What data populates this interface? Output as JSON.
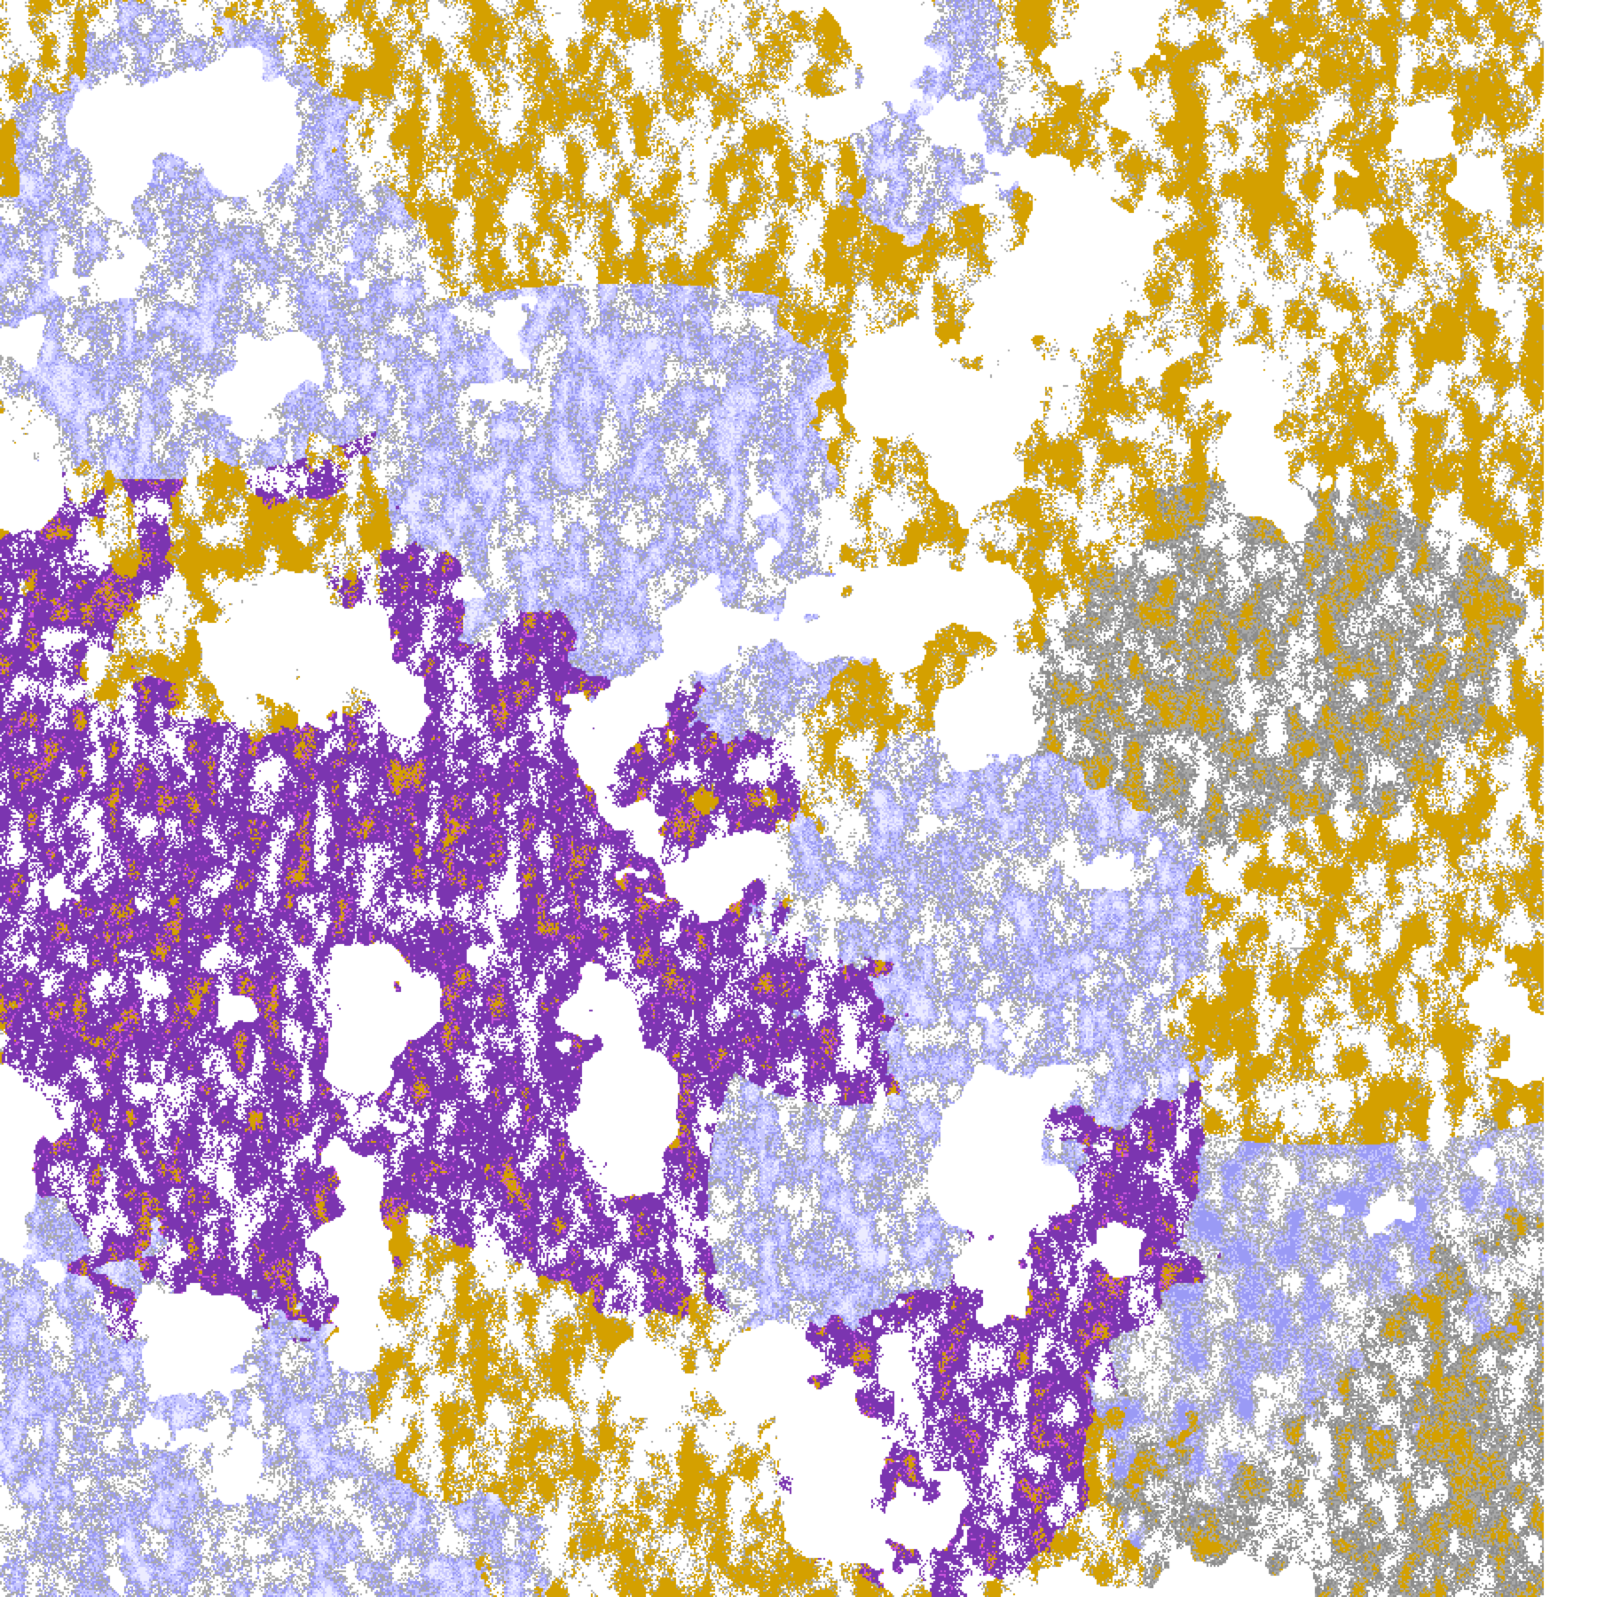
{
  "image": {
    "kind": "false-color satellite classification map",
    "palette": {
      "clear": "#ffffff",
      "gold": "#d4a000",
      "purple": "#7b35b0",
      "magenta": "#d056e0",
      "lavender": "#c8c8ff",
      "periwinkle": "#9a9af5",
      "pale": "#ececff",
      "gray": "#a8a8a8",
      "dark_gray": "#8c8c8c"
    }
  }
}
